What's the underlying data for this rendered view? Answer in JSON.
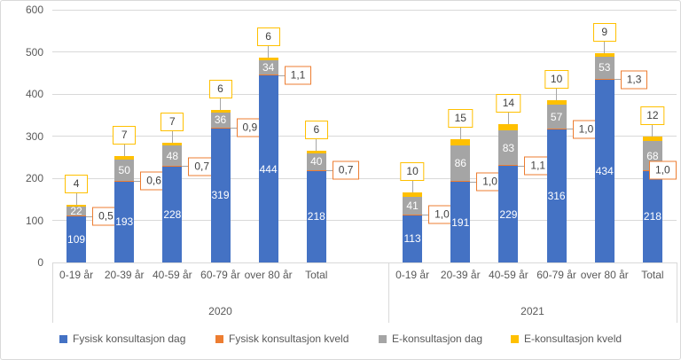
{
  "chart_data": {
    "type": "bar",
    "stacked": true,
    "title": "",
    "xlabel": "",
    "ylabel": "",
    "grid": true,
    "legend_position": "bottom",
    "y_axis": {
      "min": 0,
      "max": 600,
      "step": 100,
      "ticks": [
        0,
        100,
        200,
        300,
        400,
        500,
        600
      ]
    },
    "colors": {
      "fysisk_dag": "#4472c4",
      "fysisk_kveld": "#ed7d31",
      "e_dag": "#a5a5a5",
      "e_kveld": "#ffc000",
      "grid": "#d9d9d9",
      "axis_text": "#595959",
      "callout_text": "#404040",
      "connector": "#a6a6a6"
    },
    "groups": [
      {
        "label": "2020",
        "categories": [
          "0-19 år",
          "20-39 år",
          "40-59 år",
          "60-79 år",
          "over 80 år",
          "Total"
        ],
        "series": [
          {
            "name": "Fysisk konsultasjon dag",
            "values": [
              109,
              193,
              228,
              319,
              444,
              218
            ],
            "labels": [
              "109",
              "193",
              "228",
              "319",
              "444",
              "218"
            ]
          },
          {
            "name": "Fysisk konsultasjon kveld",
            "values": [
              0.5,
              0.6,
              0.7,
              0.9,
              1.1,
              0.7
            ],
            "labels": [
              "0,5",
              "0,6",
              "0,7",
              "0,9",
              "1,1",
              "0,7"
            ]
          },
          {
            "name": "E-konsultasjon dag",
            "values": [
              22,
              50,
              48,
              36,
              34,
              40
            ],
            "labels": [
              "22",
              "50",
              "48",
              "36",
              "34",
              "40"
            ]
          },
          {
            "name": "E-konsultasjon kveld",
            "values": [
              4,
              7,
              7,
              6,
              6,
              6
            ],
            "labels": [
              "4",
              "7",
              "7",
              "6",
              "6",
              "6"
            ]
          }
        ]
      },
      {
        "label": "2021",
        "categories": [
          "0-19 år",
          "20-39 år",
          "40-59 år",
          "60-79 år",
          "over 80 år",
          "Total"
        ],
        "series": [
          {
            "name": "Fysisk konsultasjon dag",
            "values": [
              113,
              191,
              229,
              316,
              434,
              218
            ],
            "labels": [
              "113",
              "191",
              "229",
              "316",
              "434",
              "218"
            ]
          },
          {
            "name": "Fysisk konsultasjon kveld",
            "values": [
              1.0,
              1.0,
              1.1,
              1.0,
              1.3,
              1.0
            ],
            "labels": [
              "1,0",
              "1,0",
              "1,1",
              "1,0",
              "1,3",
              "1,0"
            ]
          },
          {
            "name": "E-konsultasjon dag",
            "values": [
              41,
              86,
              83,
              57,
              53,
              68
            ],
            "labels": [
              "41",
              "86",
              "83",
              "57",
              "53",
              "68"
            ]
          },
          {
            "name": "E-konsultasjon kveld",
            "values": [
              10,
              15,
              14,
              10,
              9,
              12
            ],
            "labels": [
              "10",
              "15",
              "14",
              "10",
              "9",
              "12"
            ]
          }
        ]
      }
    ],
    "legend": [
      {
        "label": "Fysisk konsultasjon dag",
        "color": "#4472c4"
      },
      {
        "label": "Fysisk konsultasjon kveld",
        "color": "#ed7d31"
      },
      {
        "label": "E-konsultasjon dag",
        "color": "#a5a5a5"
      },
      {
        "label": "E-konsultasjon kveld",
        "color": "#ffc000"
      }
    ]
  }
}
